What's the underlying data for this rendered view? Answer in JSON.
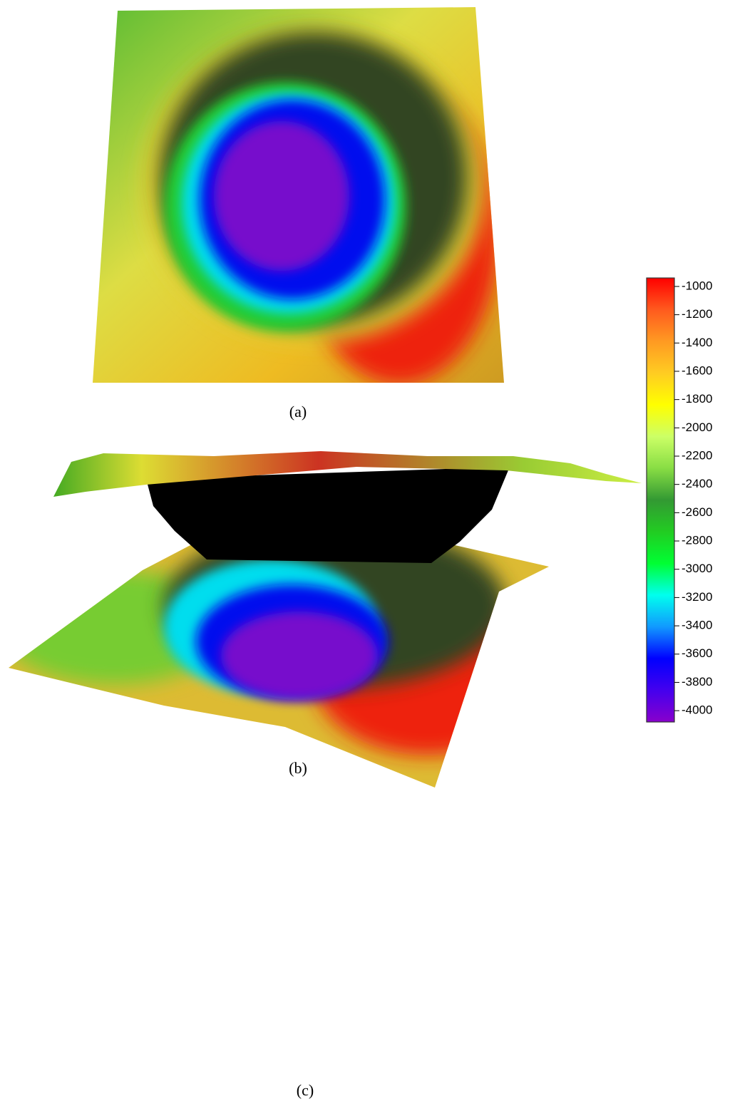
{
  "panels": [
    {
      "label": "(a)"
    },
    {
      "label": "(b)"
    },
    {
      "label": "(c)"
    }
  ],
  "colorbar": {
    "lim": [
      -4080,
      -940
    ],
    "ticks": [
      -1000,
      -1200,
      -1400,
      -1600,
      -1800,
      -2000,
      -2200,
      -2400,
      -2600,
      -2800,
      -3000,
      -3200,
      -3400,
      -3600,
      -3800,
      -4000
    ],
    "colors": [
      "#ff0000",
      "#ff5a1e",
      "#ff9a22",
      "#ffcc22",
      "#ffff00",
      "#ccff66",
      "#88dd44",
      "#339933",
      "#22cc22",
      "#00ff33",
      "#00ffee",
      "#1199ff",
      "#0000ff",
      "#4400ee",
      "#8800cc"
    ]
  }
}
